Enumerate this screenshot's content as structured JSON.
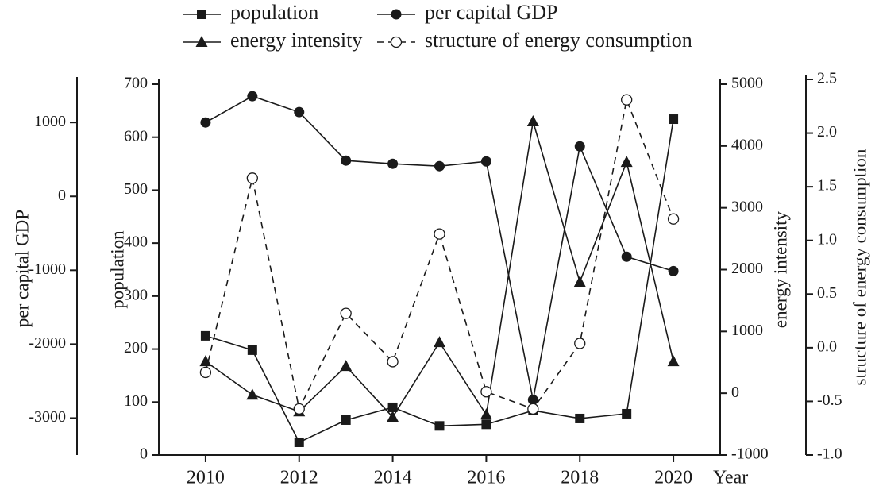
{
  "chart_data": {
    "type": "line",
    "x": [
      2010,
      2011,
      2012,
      2013,
      2014,
      2015,
      2016,
      2017,
      2018,
      2019,
      2020
    ],
    "xlim": [
      2009,
      2021
    ],
    "xticks": [
      2010,
      2012,
      2014,
      2016,
      2018,
      2020
    ],
    "xlabel": "Year",
    "ylabel": "population",
    "ylim": [
      0,
      700
    ],
    "yticks": [
      0,
      100,
      200,
      300,
      400,
      500,
      600,
      700
    ],
    "y2label": "energy intensity",
    "y2lim": [
      -1000,
      5000
    ],
    "y2ticks": [
      -1000,
      0,
      1000,
      2000,
      3000,
      4000,
      5000
    ],
    "y3label": "per capital GDP",
    "y3lim": [
      -3500,
      1550
    ],
    "y3ticks": [
      -3000,
      -2000,
      -1000,
      0,
      1000
    ],
    "y4label": "structure of energy consumption",
    "y4lim": [
      -1,
      2.5
    ],
    "y4ticks": [
      {
        "value": -1,
        "label": "-1.0"
      },
      -0.5,
      {
        "value": 0,
        "label": "0.0"
      },
      0.5,
      {
        "value": 1,
        "label": "1.0"
      },
      1.5,
      {
        "value": 2,
        "label": "2.0"
      },
      2.5
    ],
    "series": [
      {
        "name": "population",
        "color": "#1a1a1a",
        "marker": "square",
        "axis": "y",
        "values": [
          225,
          198,
          24,
          66,
          90,
          55,
          58,
          84,
          69,
          78,
          634
        ]
      },
      {
        "name": "per capital GDP",
        "color": "#1a1a1a",
        "marker": "circle",
        "axis": "y3",
        "values": [
          1000,
          1355,
          1140,
          484,
          441,
          409,
          473,
          -2753,
          677,
          -817,
          -1011
        ]
      },
      {
        "name": "energy intensity",
        "color": "#1a1a1a",
        "marker": "triangle",
        "axis": "y2",
        "values": [
          514,
          -26,
          -296,
          437,
          -386,
          823,
          -347,
          4396,
          1800,
          3740,
          514
        ]
      },
      {
        "name": "structure of energy consumption",
        "color": "#1a1a1a",
        "marker": "open-circle",
        "dashed": true,
        "axis": "y4",
        "values": [
          -0.23,
          1.58,
          -0.57,
          0.32,
          -0.13,
          1.06,
          -0.41,
          -0.57,
          0.04,
          2.31,
          1.2
        ]
      }
    ]
  }
}
